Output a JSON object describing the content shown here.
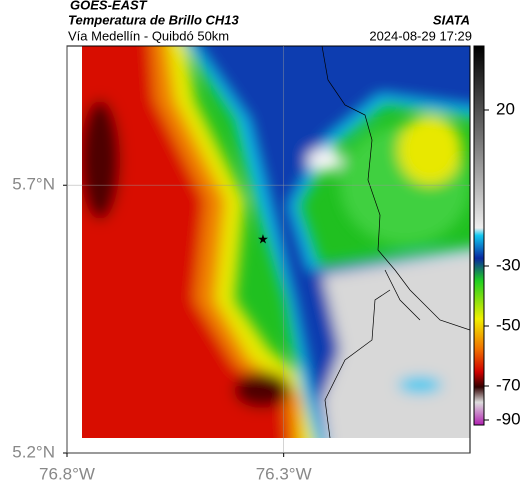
{
  "header": {
    "title": "GOES-EAST",
    "subtitle": "Temperatura de Brillo CH13",
    "source": "SIATA",
    "location": "Vía Medellín - Quibdó 50km",
    "datetime": "2024-08-29 17:29"
  },
  "map": {
    "lon_range": [
      -76.8,
      -75.87
    ],
    "lat_range": [
      5.2,
      5.96
    ],
    "lat_ticks": [
      {
        "value": 5.7,
        "label": "5.7°N"
      },
      {
        "value": 5.2,
        "label": "5.2°N"
      }
    ],
    "lon_ticks": [
      {
        "value": -76.8,
        "label": "76.8°W"
      },
      {
        "value": -76.3,
        "label": "76.3°W"
      }
    ]
  },
  "colorbar": {
    "ticks": [
      20,
      -30,
      -50,
      -70,
      -90
    ]
  }
}
